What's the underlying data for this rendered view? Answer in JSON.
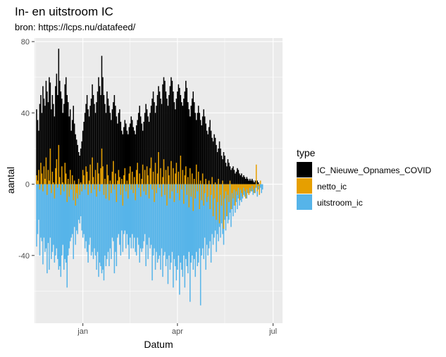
{
  "chart_data": {
    "type": "bar",
    "title": "In- en uitstroom IC",
    "subtitle": "bron: https://lcps.nu/datafeed/",
    "xlabel": "Datum",
    "ylabel": "aantal",
    "x_range": [
      "2020-11-16",
      "2021-07-10"
    ],
    "ylim": [
      -78,
      82
    ],
    "x_ticks": [
      {
        "date": "2021-01-01",
        "label": "jan"
      },
      {
        "date": "2021-04-01",
        "label": "apr"
      },
      {
        "date": "2021-07-01",
        "label": "jul"
      }
    ],
    "y_ticks": [
      {
        "value": 80,
        "label": "80"
      },
      {
        "value": 40,
        "label": "40"
      },
      {
        "value": 0,
        "label": "0"
      },
      {
        "value": -40,
        "label": "-40"
      }
    ],
    "grid": true,
    "legend": {
      "title": "type",
      "position": "right",
      "entries": [
        {
          "name": "IC_Nieuwe_Opnames_COVID",
          "color": "#000000"
        },
        {
          "name": "netto_ic",
          "color": "#E69F00"
        },
        {
          "name": "uitstroom_ic",
          "color": "#56B4E9"
        }
      ]
    },
    "series": [
      {
        "name": "IC_Nieuwe_Opnames_COVID",
        "color": "#000000",
        "start_date": "2020-11-18",
        "values": [
          42,
          36,
          30,
          45,
          50,
          40,
          55,
          48,
          44,
          58,
          52,
          46,
          60,
          57,
          42,
          50,
          45,
          38,
          55,
          62,
          50,
          76,
          58,
          52,
          48,
          40,
          45,
          56,
          60,
          50,
          46,
          38,
          42,
          30,
          36,
          44,
          34,
          28,
          25,
          22,
          18,
          16,
          20,
          24,
          30,
          35,
          40,
          45,
          50,
          42,
          38,
          44,
          48,
          56,
          50,
          45,
          40,
          46,
          52,
          60,
          55,
          50,
          72,
          60,
          50,
          45,
          40,
          52,
          48,
          44,
          40,
          36,
          42,
          46,
          50,
          44,
          38,
          34,
          40,
          42,
          35,
          30,
          28,
          32,
          36,
          34,
          30,
          28,
          32,
          34,
          38,
          36,
          32,
          30,
          28,
          33,
          36,
          40,
          44,
          38,
          34,
          30,
          35,
          40,
          45,
          42,
          38,
          35,
          40,
          44,
          48,
          52,
          46,
          40,
          44,
          50,
          55,
          52,
          48,
          45,
          56,
          60,
          58,
          52,
          48,
          44,
          50,
          55,
          60,
          58,
          52,
          46,
          42,
          48,
          52,
          56,
          54,
          50,
          46,
          44,
          48,
          52,
          58,
          54,
          46,
          42,
          38,
          44,
          48,
          52,
          46,
          40,
          36,
          40,
          44,
          40,
          36,
          33,
          38,
          42,
          38,
          34,
          30,
          28,
          32,
          36,
          30,
          26,
          24,
          28,
          26,
          22,
          18,
          20,
          24,
          20,
          16,
          14,
          18,
          16,
          12,
          10,
          14,
          12,
          10,
          8,
          9,
          10,
          8,
          6,
          7,
          9,
          8,
          6,
          5,
          6,
          4,
          5,
          4,
          3,
          4,
          3,
          2,
          3,
          2,
          3,
          2,
          1,
          2,
          1,
          2,
          1
        ]
      },
      {
        "name": "netto_ic",
        "color": "#E69F00",
        "start_date": "2020-11-18",
        "values": [
          5,
          2,
          8,
          -3,
          12,
          6,
          -4,
          10,
          3,
          15,
          -6,
          8,
          2,
          20,
          -5,
          7,
          1,
          -8,
          9,
          14,
          -2,
          22,
          4,
          -6,
          10,
          1,
          -4,
          12,
          6,
          -10,
          3,
          -7,
          8,
          -3,
          5,
          -9,
          2,
          -12,
          -5,
          -8,
          3,
          -6,
          1,
          -4,
          8,
          5,
          -3,
          10,
          7,
          -6,
          2,
          11,
          -5,
          15,
          4,
          -3,
          8,
          -7,
          12,
          6,
          -4,
          9,
          20,
          10,
          -6,
          3,
          -8,
          11,
          5,
          -9,
          2,
          -5,
          7,
          13,
          -3,
          6,
          -10,
          2,
          8,
          4,
          -6,
          3,
          -12,
          5,
          9,
          -4,
          2,
          -8,
          6,
          10,
          -3,
          7,
          -5,
          4,
          -9,
          8,
          12,
          -2,
          6,
          -7,
          3,
          11,
          -4,
          8,
          -6,
          10,
          5,
          -8,
          9,
          15,
          -3,
          7,
          -10,
          12,
          -5,
          6,
          18,
          -2,
          9,
          -7,
          4,
          14,
          -6,
          8,
          -12,
          10,
          5,
          -8,
          13,
          -4,
          9,
          -10,
          6,
          12,
          -5,
          7,
          -9,
          16,
          -3,
          8,
          -11,
          5,
          10,
          -6,
          4,
          -13,
          9,
          -7,
          6,
          -15,
          3,
          -8,
          11,
          -4,
          7,
          -14,
          2,
          -9,
          6,
          -12,
          -5,
          3,
          -10,
          -7,
          2,
          -14,
          -6,
          4,
          -18,
          -8,
          1,
          -20,
          -10,
          3,
          -22,
          -6,
          -12,
          2,
          -25,
          -8,
          -4,
          -18,
          -6,
          -10,
          2,
          -14,
          -5,
          -8,
          -3,
          -12,
          -4,
          -6,
          -2,
          -9,
          -3,
          -5,
          -7,
          -2,
          -4,
          -8,
          -3,
          -5,
          -6,
          -2,
          -4,
          -1,
          -3,
          -5,
          -2,
          11,
          -4,
          -1,
          -6,
          2
        ]
      },
      {
        "name": "uitstroom_ic",
        "color": "#56B4E9",
        "start_date": "2020-11-18",
        "values": [
          -35,
          -28,
          -20,
          -40,
          -30,
          -32,
          -45,
          -30,
          -38,
          -36,
          -50,
          -33,
          -48,
          -30,
          -42,
          -38,
          -34,
          -44,
          -40,
          -36,
          -42,
          -48,
          -46,
          -52,
          -40,
          -34,
          -48,
          -42,
          -44,
          -58,
          -40,
          -36,
          -32,
          -30,
          -28,
          -42,
          -24,
          -34,
          -26,
          -28,
          -20,
          -22,
          -18,
          -26,
          -30,
          -28,
          -36,
          -32,
          -38,
          -44,
          -34,
          -30,
          -40,
          -38,
          -42,
          -36,
          -40,
          -48,
          -38,
          -52,
          -44,
          -46,
          -50,
          -48,
          -54,
          -40,
          -46,
          -42,
          -38,
          -46,
          -36,
          -42,
          -30,
          -32,
          -50,
          -38,
          -46,
          -30,
          -28,
          -34,
          -40,
          -26,
          -38,
          -28,
          -26,
          -36,
          -28,
          -34,
          -42,
          -30,
          -36,
          -28,
          -36,
          -30,
          -38,
          -40,
          -30,
          -34,
          -44,
          -36,
          -38,
          -36,
          -32,
          -28,
          -46,
          -34,
          -42,
          -30,
          -36,
          -34,
          -54,
          -40,
          -36,
          -48,
          -38,
          -44,
          -42,
          -40,
          -48,
          -36,
          -52,
          -40,
          -38,
          -46,
          -42,
          -56,
          -40,
          -48,
          -44,
          -38,
          -58,
          -42,
          -46,
          -54,
          -48,
          -40,
          -62,
          -44,
          -48,
          -52,
          -40,
          -58,
          -42,
          -46,
          -50,
          -38,
          -66,
          -44,
          -40,
          -48,
          -42,
          -52,
          -38,
          -46,
          -44,
          -36,
          -68,
          -40,
          -36,
          -42,
          -30,
          -48,
          -34,
          -40,
          -36,
          -32,
          -44,
          -28,
          -34,
          -30,
          -26,
          -38,
          -28,
          -32,
          -24,
          -30,
          -22,
          -28,
          -34,
          -20,
          -26,
          -18,
          -22,
          -20,
          -16,
          -24,
          -14,
          -18,
          -12,
          -16,
          -10,
          -14,
          -8,
          -12,
          -9,
          -10,
          -8,
          -6,
          -7,
          -5,
          -8,
          -4,
          -6,
          -5,
          -3,
          -4,
          -6,
          -3,
          -5,
          -2,
          -7,
          -3,
          -4,
          -2,
          -5,
          -3
        ]
      }
    ]
  }
}
